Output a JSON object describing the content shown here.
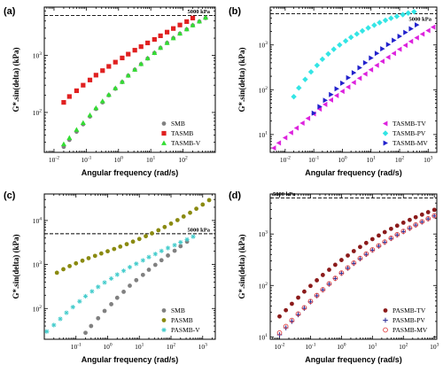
{
  "chart_data": [
    {
      "panel": "(a)",
      "type": "scatter",
      "xlabel": "Angular frequency (rad/s)",
      "ylabel": "G*.sin(delta) (kPa)",
      "xscale": "log",
      "yscale": "log",
      "xlim": [
        0.005,
        1000
      ],
      "ylim": [
        20,
        7000
      ],
      "xticks": [
        0.01,
        0.1,
        1,
        10,
        100
      ],
      "xtick_labels": [
        "10^-2",
        "10^-1",
        "10^0",
        "10^1",
        "10^2"
      ],
      "yticks": [
        100,
        1000
      ],
      "ytick_labels": [
        "10^2",
        "10^3"
      ],
      "reference_line": {
        "y": 5000,
        "label": "5000 kPa"
      },
      "legend_position": "bottom-right",
      "series": [
        {
          "name": "SMB",
          "marker": "circle",
          "color": "#808080",
          "x": [
            0.02,
            0.03,
            0.05,
            0.08,
            0.13,
            0.2,
            0.32,
            0.5,
            0.8,
            1.3,
            2,
            3.2,
            5,
            8,
            13,
            20,
            32,
            50,
            80,
            130,
            200,
            320,
            500
          ],
          "y": [
            25,
            33,
            46,
            62,
            85,
            115,
            150,
            200,
            260,
            340,
            440,
            560,
            700,
            880,
            1100,
            1350,
            1650,
            2000,
            2400,
            2850,
            3350,
            3900,
            4500
          ]
        },
        {
          "name": "TASMB",
          "marker": "square",
          "color": "#e02020",
          "x": [
            0.02,
            0.03,
            0.05,
            0.08,
            0.13,
            0.2,
            0.32,
            0.5,
            0.8,
            1.3,
            2,
            3.2,
            5,
            8,
            13,
            20,
            32,
            50,
            80,
            130,
            200
          ],
          "y": [
            150,
            190,
            240,
            300,
            370,
            450,
            540,
            640,
            760,
            900,
            1050,
            1230,
            1420,
            1650,
            1900,
            2200,
            2550,
            2950,
            3400,
            3900,
            4500
          ]
        },
        {
          "name": "TASMB-V",
          "marker": "triangle-up",
          "color": "#33dd33",
          "x": [
            0.02,
            0.03,
            0.05,
            0.08,
            0.13,
            0.2,
            0.32,
            0.5,
            0.8,
            1.3,
            2,
            3.2,
            5,
            8,
            13,
            20,
            32,
            50,
            80,
            130,
            200,
            320,
            500
          ],
          "y": [
            28,
            36,
            50,
            66,
            90,
            120,
            158,
            205,
            268,
            345,
            445,
            565,
            710,
            890,
            1110,
            1360,
            1660,
            2010,
            2420,
            2880,
            3380,
            3950,
            4600
          ]
        }
      ]
    },
    {
      "panel": "(b)",
      "type": "scatter",
      "xlabel": "Angular frequency (rad/s)",
      "ylabel": "G*.sin(delta) (kPa)",
      "xscale": "log",
      "yscale": "log",
      "xlim": [
        0.003,
        2000
      ],
      "ylim": [
        4,
        7000
      ],
      "xticks": [
        0.01,
        0.1,
        1,
        10,
        100,
        1000
      ],
      "xtick_labels": [
        "10^-2",
        "10^-1",
        "10^0",
        "10^1",
        "10^2",
        "10^3"
      ],
      "yticks": [
        10,
        100,
        1000
      ],
      "ytick_labels": [
        "10^1",
        "10^2",
        "10^3"
      ],
      "reference_line": {
        "y": 5000,
        "label": "5000 kPa"
      },
      "legend_position": "bottom-right",
      "series": [
        {
          "name": "TASMB-TV",
          "marker": "triangle-left",
          "color": "#dd22dd",
          "x": [
            0.004,
            0.006,
            0.01,
            0.016,
            0.025,
            0.04,
            0.063,
            0.1,
            0.16,
            0.25,
            0.4,
            0.63,
            1,
            1.6,
            2.5,
            4,
            6.3,
            10,
            16,
            25,
            40,
            63,
            100,
            160,
            250,
            400,
            630,
            1000,
            1500
          ],
          "y": [
            5,
            6.5,
            8.5,
            11,
            14,
            18,
            23,
            29,
            37,
            47,
            59,
            74,
            92,
            115,
            145,
            180,
            225,
            280,
            350,
            430,
            530,
            650,
            800,
            980,
            1200,
            1450,
            1750,
            2100,
            2500
          ]
        },
        {
          "name": "TASMB-PV",
          "marker": "diamond",
          "color": "#33e5e5",
          "x": [
            0.02,
            0.03,
            0.05,
            0.08,
            0.13,
            0.2,
            0.32,
            0.5,
            0.8,
            1.3,
            2,
            3.2,
            5,
            8,
            13,
            20,
            32,
            50,
            80,
            130,
            200,
            320
          ],
          "y": [
            70,
            110,
            170,
            250,
            350,
            480,
            630,
            800,
            1000,
            1230,
            1480,
            1760,
            2060,
            2400,
            2760,
            3150,
            3550,
            3950,
            4350,
            4750,
            5150,
            5500
          ]
        },
        {
          "name": "TASMB-MV",
          "marker": "triangle-right",
          "color": "#2222cc",
          "x": [
            0.1,
            0.16,
            0.25,
            0.4,
            0.63,
            1,
            1.6,
            2.5,
            4,
            6.3,
            10,
            16,
            25,
            40,
            63,
            100,
            160,
            250,
            400
          ],
          "y": [
            30,
            42,
            58,
            78,
            105,
            140,
            185,
            240,
            310,
            400,
            510,
            650,
            820,
            1020,
            1270,
            1560,
            1900,
            2300,
            2800
          ]
        }
      ]
    },
    {
      "panel": "(c)",
      "type": "scatter",
      "xlabel": "Angular frequency (rad/s)",
      "ylabel": "G*.sin(delta) (kPa)",
      "xscale": "log",
      "yscale": "log",
      "xlim": [
        0.01,
        2500
      ],
      "ylim": [
        20,
        40000
      ],
      "xticks": [
        0.1,
        1,
        10,
        100,
        1000
      ],
      "xtick_labels": [
        "10^-1",
        "10^0",
        "10^1",
        "10^2",
        "10^3"
      ],
      "yticks": [
        100,
        1000,
        10000
      ],
      "ytick_labels": [
        "10^2",
        "10^3",
        "10^4"
      ],
      "reference_line": {
        "y": 5000,
        "label": "5000 kPa"
      },
      "legend_position": "bottom-right",
      "series": [
        {
          "name": "SMB",
          "marker": "circle",
          "color": "#808080",
          "x": [
            0.2,
            0.3,
            0.5,
            0.8,
            1.3,
            2,
            3.2,
            5,
            8,
            13,
            20,
            32,
            50,
            80,
            130,
            200,
            320
          ],
          "y": [
            28,
            40,
            60,
            88,
            125,
            175,
            240,
            330,
            440,
            580,
            760,
            980,
            1250,
            1600,
            2050,
            2600,
            3300
          ]
        },
        {
          "name": "PASMB",
          "marker": "circle",
          "color": "#8a8a10",
          "x": [
            0.025,
            0.04,
            0.063,
            0.1,
            0.16,
            0.25,
            0.4,
            0.63,
            1,
            1.6,
            2.5,
            4,
            6.3,
            10,
            16,
            25,
            40,
            63,
            100,
            160,
            250,
            400,
            630,
            1000,
            1600
          ],
          "y": [
            650,
            780,
            920,
            1060,
            1220,
            1390,
            1570,
            1780,
            2000,
            2250,
            2550,
            2900,
            3300,
            3800,
            4400,
            5100,
            6000,
            7100,
            8500,
            10200,
            12300,
            15000,
            18500,
            23000,
            29000
          ]
        },
        {
          "name": "PASMB-V",
          "marker": "asterisk",
          "color": "#44cccc",
          "x": [
            0.012,
            0.02,
            0.032,
            0.05,
            0.08,
            0.13,
            0.2,
            0.32,
            0.5,
            0.8,
            1.3,
            2,
            3.2,
            5,
            8,
            13,
            20,
            32,
            50,
            80,
            130,
            200,
            320,
            500
          ],
          "y": [
            30,
            42,
            58,
            80,
            108,
            145,
            190,
            245,
            310,
            390,
            480,
            590,
            720,
            870,
            1040,
            1240,
            1470,
            1730,
            2030,
            2370,
            2750,
            3200,
            3700,
            4300
          ]
        }
      ]
    },
    {
      "panel": "(d)",
      "type": "scatter",
      "xlabel": "Angular frequency (rad/s)",
      "ylabel": "G*.sin(delta) (kPa)",
      "xscale": "log",
      "yscale": "log",
      "xlim": [
        0.005,
        1200
      ],
      "ylim": [
        9,
        6000
      ],
      "xticks": [
        0.01,
        0.1,
        1,
        10,
        100,
        1000
      ],
      "xtick_labels": [
        "10^-2",
        "10^-1",
        "10^0",
        "10^1",
        "10^2",
        "10^3"
      ],
      "yticks": [
        10,
        100,
        1000
      ],
      "ytick_labels": [
        "10^1",
        "10^2",
        "10^3"
      ],
      "reference_line": {
        "y": 5000,
        "label": "5000 kPa"
      },
      "legend_position": "bottom-right",
      "series": [
        {
          "name": "PASMB-TV",
          "marker": "circle",
          "color": "#8b1a1a",
          "x": [
            0.01,
            0.016,
            0.025,
            0.04,
            0.063,
            0.1,
            0.16,
            0.25,
            0.4,
            0.63,
            1,
            1.6,
            2.5,
            4,
            6.3,
            10,
            16,
            25,
            40,
            63,
            100,
            160,
            250,
            400,
            630,
            1000
          ],
          "y": [
            25,
            33,
            44,
            58,
            76,
            98,
            126,
            160,
            202,
            252,
            312,
            382,
            465,
            560,
            670,
            795,
            935,
            1090,
            1260,
            1450,
            1660,
            1880,
            2120,
            2380,
            2660,
            2950
          ]
        },
        {
          "name": "PASMB-PV",
          "marker": "plus",
          "color": "#333399",
          "x": [
            0.01,
            0.016,
            0.025,
            0.04,
            0.063,
            0.1,
            0.16,
            0.25,
            0.4,
            0.63,
            1,
            1.6,
            2.5,
            4,
            6.3,
            10,
            16,
            25,
            40,
            63,
            100,
            160,
            250,
            400,
            630,
            1000
          ],
          "y": [
            11,
            15,
            20,
            27,
            36,
            48,
            63,
            82,
            106,
            136,
            172,
            216,
            268,
            330,
            402,
            486,
            580,
            690,
            815,
            955,
            1110,
            1290,
            1490,
            1710,
            1960,
            2240
          ]
        },
        {
          "name": "PASMB-MV",
          "marker": "circle-open",
          "color": "#e04040",
          "x": [
            0.01,
            0.016,
            0.025,
            0.04,
            0.063,
            0.1,
            0.16,
            0.25,
            0.4,
            0.63,
            1,
            1.6,
            2.5,
            4,
            6.3,
            10,
            16,
            25,
            40,
            63,
            100,
            160,
            250,
            400,
            630,
            1000
          ],
          "y": [
            12,
            16,
            21,
            28,
            37,
            49,
            64,
            83,
            108,
            138,
            175,
            220,
            274,
            337,
            410,
            495,
            592,
            703,
            830,
            972,
            1130,
            1310,
            1510,
            1735,
            1985,
            2260
          ]
        }
      ]
    }
  ]
}
